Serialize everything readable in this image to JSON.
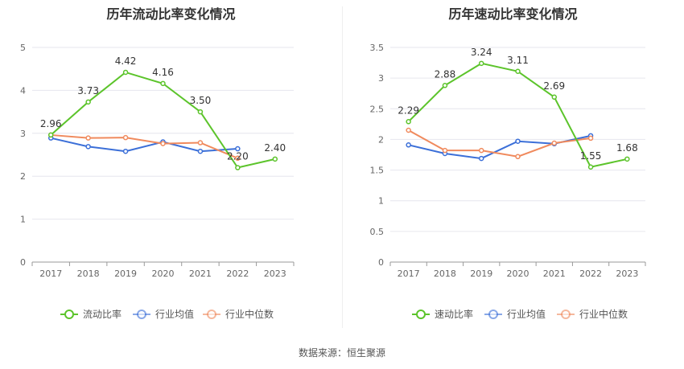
{
  "source_label": "数据来源：恒生聚源",
  "colors": {
    "company": "#5cc42b",
    "industry_avg": "#3b6fd8",
    "industry_median": "#f08a5d"
  },
  "chart_data": [
    {
      "type": "line",
      "title": "历年流动比率变化情况",
      "x": [
        "2017",
        "2018",
        "2019",
        "2020",
        "2021",
        "2022",
        "2023"
      ],
      "ylim": [
        0,
        5
      ],
      "yticks": [
        "0",
        "1",
        "2",
        "3",
        "4",
        "5"
      ],
      "grid": true,
      "legend_position": "bottom",
      "series": [
        {
          "name": "流动比率",
          "values": [
            2.96,
            3.73,
            4.42,
            4.16,
            3.5,
            2.2,
            2.4
          ],
          "labels": [
            "2.96",
            "3.73",
            "4.42",
            "4.16",
            "3.50",
            "2.20",
            "2.40"
          ]
        },
        {
          "name": "行业均值",
          "values": [
            2.89,
            2.69,
            2.58,
            2.8,
            2.58,
            2.64,
            null
          ]
        },
        {
          "name": "行业中位数",
          "values": [
            2.96,
            2.89,
            2.9,
            2.76,
            2.78,
            2.42,
            null
          ]
        }
      ]
    },
    {
      "type": "line",
      "title": "历年速动比率变化情况",
      "x": [
        "2017",
        "2018",
        "2019",
        "2020",
        "2021",
        "2022",
        "2023"
      ],
      "ylim": [
        0,
        3.5
      ],
      "yticks": [
        "0",
        "0.5",
        "1",
        "1.5",
        "2",
        "2.5",
        "3",
        "3.5"
      ],
      "grid": true,
      "legend_position": "bottom",
      "series": [
        {
          "name": "速动比率",
          "values": [
            2.29,
            2.88,
            3.24,
            3.11,
            2.69,
            1.55,
            1.68
          ],
          "labels": [
            "2.29",
            "2.88",
            "3.24",
            "3.11",
            "2.69",
            "1.55",
            "1.68"
          ]
        },
        {
          "name": "行业均值",
          "values": [
            1.91,
            1.77,
            1.69,
            1.97,
            1.93,
            2.06,
            null
          ]
        },
        {
          "name": "行业中位数",
          "values": [
            2.15,
            1.82,
            1.82,
            1.72,
            1.94,
            2.02,
            null
          ]
        }
      ]
    }
  ]
}
